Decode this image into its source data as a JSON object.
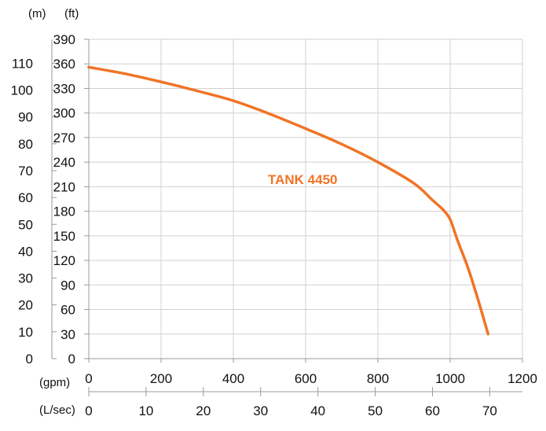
{
  "chart_data": {
    "type": "line",
    "title": "",
    "annotation": "TANK 4450",
    "units": {
      "head_m": "(m)",
      "head_ft": "(ft)",
      "flow_gpm": "(gpm)",
      "flow_lsec": "(L/sec)"
    },
    "x_gpm": {
      "ticks": [
        "0",
        "200",
        "400",
        "600",
        "800",
        "1000",
        "1200"
      ],
      "range": [
        0,
        1200
      ]
    },
    "x_lsec": {
      "ticks": [
        "0",
        "10",
        "20",
        "30",
        "40",
        "50",
        "60",
        "70"
      ],
      "range": [
        0,
        75.7
      ]
    },
    "y_ft": {
      "ticks": [
        "0",
        "30",
        "60",
        "90",
        "120",
        "150",
        "180",
        "210",
        "240",
        "270",
        "300",
        "330",
        "360",
        "390"
      ],
      "range": [
        0,
        390
      ]
    },
    "y_m": {
      "ticks": [
        "0",
        "10",
        "20",
        "30",
        "40",
        "50",
        "60",
        "70",
        "80",
        "90",
        "100",
        "110"
      ],
      "range": [
        0,
        118.9
      ]
    },
    "grid": true,
    "series": [
      {
        "color": "#F07427",
        "x": [
          0,
          100,
          200,
          300,
          400,
          500,
          600,
          700,
          800,
          900,
          950,
          980,
          1000,
          1020,
          1050,
          1080,
          1105
        ],
        "y": [
          356,
          348,
          338,
          327,
          315,
          299,
          281,
          262,
          240,
          214,
          194,
          182,
          170,
          145,
          110,
          68,
          30
        ]
      }
    ],
    "colors": {
      "grid": "#d0d0d0",
      "axis": "#9a9a9a",
      "line": "#F07427",
      "text": "#111111"
    }
  }
}
